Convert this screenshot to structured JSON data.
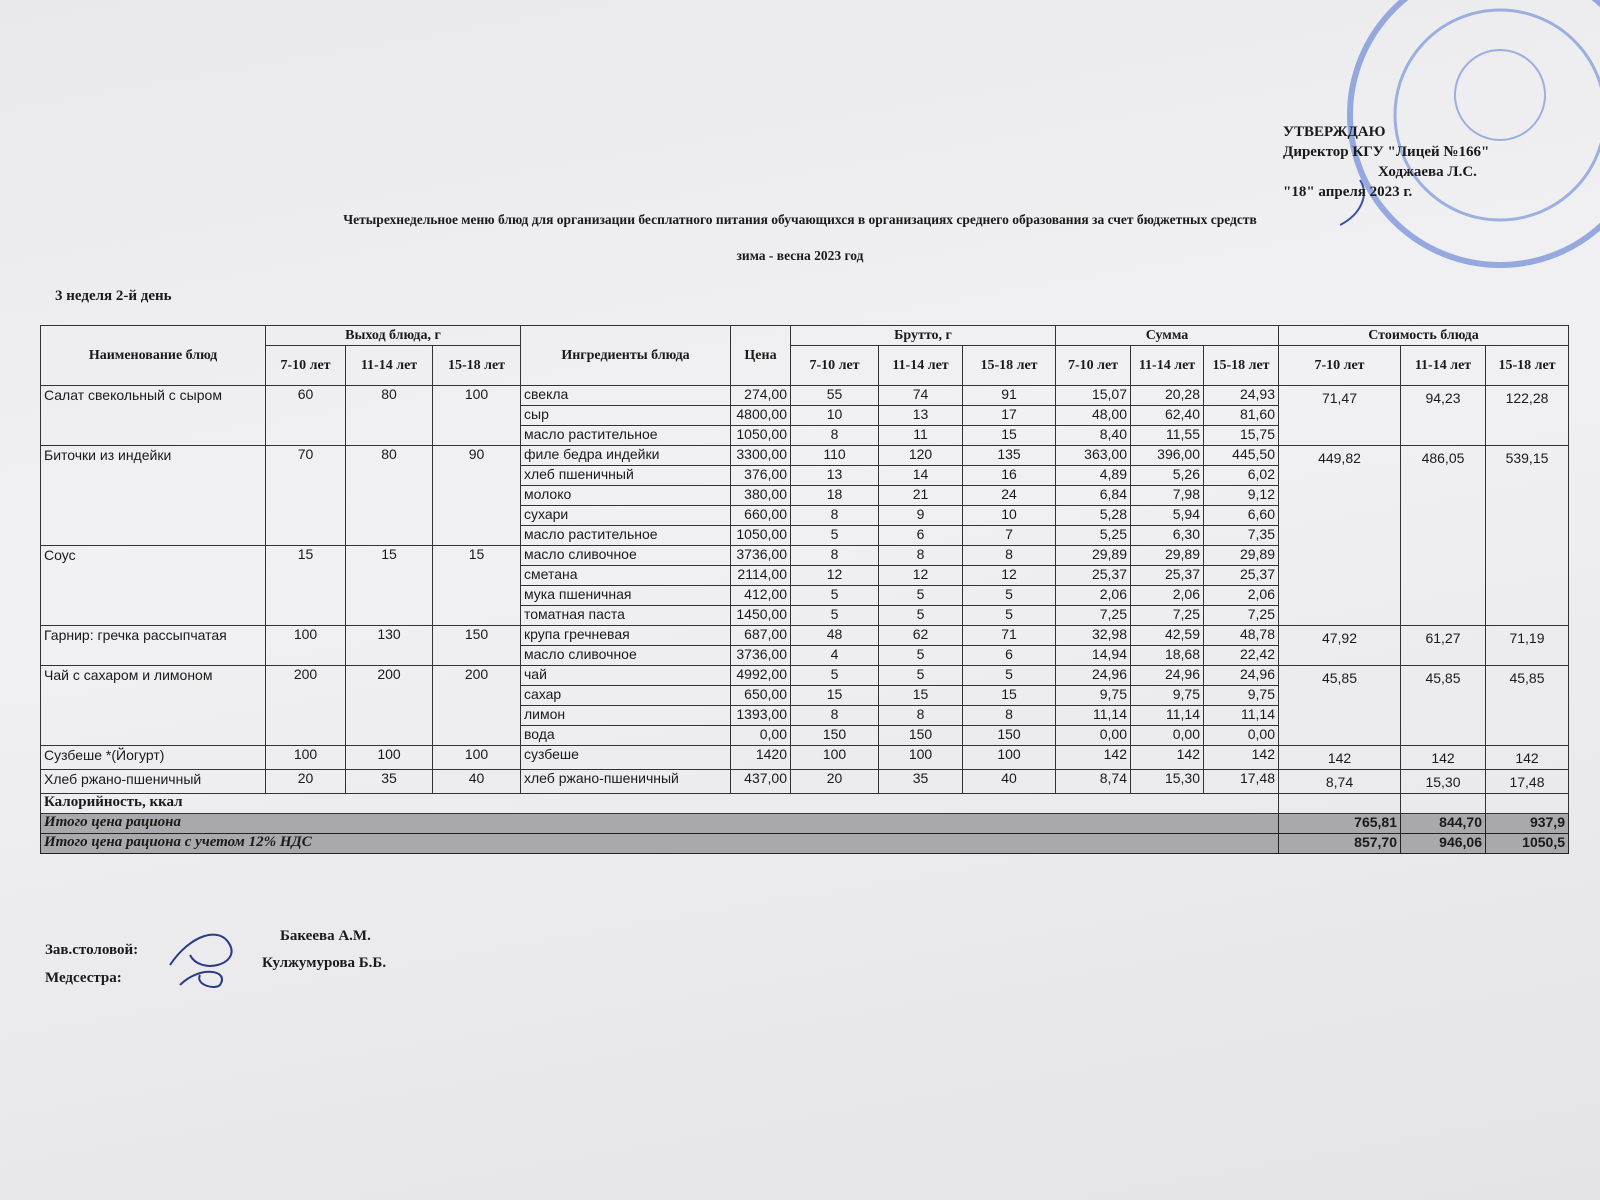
{
  "header": {
    "approve": [
      "УТВЕРЖДАЮ",
      "Директор КГУ \"Лицей №166\"",
      "Ходжаева Л.С.",
      "\"18\" апреля 2023 г."
    ],
    "title": "Четырехнедельное меню блюд для организации бесплатного питания обучающихся в организациях среднего образования за счет бюджетных средств",
    "subtitle": "зима - весна 2023 год",
    "day": "3 неделя 2-й день"
  },
  "table": {
    "columns": {
      "name": "Наименование блюд",
      "output": "Выход блюда, г",
      "ingredients": "Ингредиенты блюда",
      "price": "Цена",
      "brutto": "Брутто, г",
      "sum": "Сумма",
      "cost": "Стоимость блюда"
    },
    "ages": [
      "7-10 лет",
      "11-14 лет",
      "15-18 лет"
    ],
    "dishes": [
      {
        "name": "Салат свекольный с сыром",
        "output": [
          "60",
          "80",
          "100"
        ],
        "cost": [
          "71,47",
          "94,23",
          "122,28"
        ],
        "ingredients": [
          {
            "name": "свекла",
            "price": "274,00",
            "brutto": [
              "55",
              "74",
              "91"
            ],
            "sum": [
              "15,07",
              "20,28",
              "24,93"
            ]
          },
          {
            "name": "сыр",
            "price": "4800,00",
            "brutto": [
              "10",
              "13",
              "17"
            ],
            "sum": [
              "48,00",
              "62,40",
              "81,60"
            ]
          },
          {
            "name": "масло растительное",
            "price": "1050,00",
            "brutto": [
              "8",
              "11",
              "15"
            ],
            "sum": [
              "8,40",
              "11,55",
              "15,75"
            ]
          }
        ]
      },
      {
        "name": "Биточки из индейки",
        "output": [
          "70",
          "80",
          "90"
        ],
        "cost": [
          "449,82",
          "486,05",
          "539,15"
        ],
        "ingredients": [
          {
            "name": "филе бедра индейки",
            "price": "3300,00",
            "brutto": [
              "110",
              "120",
              "135"
            ],
            "sum": [
              "363,00",
              "396,00",
              "445,50"
            ]
          },
          {
            "name": "хлеб пшеничный",
            "price": "376,00",
            "brutto": [
              "13",
              "14",
              "16"
            ],
            "sum": [
              "4,89",
              "5,26",
              "6,02"
            ]
          },
          {
            "name": "молоко",
            "price": "380,00",
            "brutto": [
              "18",
              "21",
              "24"
            ],
            "sum": [
              "6,84",
              "7,98",
              "9,12"
            ]
          },
          {
            "name": "сухари",
            "price": "660,00",
            "brutto": [
              "8",
              "9",
              "10"
            ],
            "sum": [
              "5,28",
              "5,94",
              "6,60"
            ]
          },
          {
            "name": "масло растительное",
            "price": "1050,00",
            "brutto": [
              "5",
              "6",
              "7"
            ],
            "sum": [
              "5,25",
              "6,30",
              "7,35"
            ]
          }
        ]
      },
      {
        "name": "Соус",
        "output": [
          "15",
          "15",
          "15"
        ],
        "ingredients": [
          {
            "name": "масло сливочное",
            "price": "3736,00",
            "brutto": [
              "8",
              "8",
              "8"
            ],
            "sum": [
              "29,89",
              "29,89",
              "29,89"
            ]
          },
          {
            "name": "сметана",
            "price": "2114,00",
            "brutto": [
              "12",
              "12",
              "12"
            ],
            "sum": [
              "25,37",
              "25,37",
              "25,37"
            ]
          },
          {
            "name": "мука пшеничная",
            "price": "412,00",
            "brutto": [
              "5",
              "5",
              "5"
            ],
            "sum": [
              "2,06",
              "2,06",
              "2,06"
            ]
          },
          {
            "name": "томатная паста",
            "price": "1450,00",
            "brutto": [
              "5",
              "5",
              "5"
            ],
            "sum": [
              "7,25",
              "7,25",
              "7,25"
            ]
          }
        ]
      },
      {
        "name": "Гарнир: гречка рассыпчатая",
        "output": [
          "100",
          "130",
          "150"
        ],
        "cost": [
          "47,92",
          "61,27",
          "71,19"
        ],
        "ingredients": [
          {
            "name": "крупа гречневая",
            "price": "687,00",
            "brutto": [
              "48",
              "62",
              "71"
            ],
            "sum": [
              "32,98",
              "42,59",
              "48,78"
            ]
          },
          {
            "name": "масло сливочное",
            "price": "3736,00",
            "brutto": [
              "4",
              "5",
              "6"
            ],
            "sum": [
              "14,94",
              "18,68",
              "22,42"
            ]
          }
        ]
      },
      {
        "name": "Чай с сахаром и лимоном",
        "output": [
          "200",
          "200",
          "200"
        ],
        "cost": [
          "45,85",
          "45,85",
          "45,85"
        ],
        "ingredients": [
          {
            "name": "чай",
            "price": "4992,00",
            "brutto": [
              "5",
              "5",
              "5"
            ],
            "sum": [
              "24,96",
              "24,96",
              "24,96"
            ]
          },
          {
            "name": "сахар",
            "price": "650,00",
            "brutto": [
              "15",
              "15",
              "15"
            ],
            "sum": [
              "9,75",
              "9,75",
              "9,75"
            ]
          },
          {
            "name": "лимон",
            "price": "1393,00",
            "brutto": [
              "8",
              "8",
              "8"
            ],
            "sum": [
              "11,14",
              "11,14",
              "11,14"
            ]
          },
          {
            "name": "вода",
            "price": "0,00",
            "brutto": [
              "150",
              "150",
              "150"
            ],
            "sum": [
              "0,00",
              "0,00",
              "0,00"
            ]
          }
        ]
      },
      {
        "name": "Сузбеше *(Йогурт)",
        "output": [
          "100",
          "100",
          "100"
        ],
        "cost": [
          "142",
          "142",
          "142"
        ],
        "ingredients": [
          {
            "name": "сузбеше",
            "price": "1420",
            "brutto": [
              "100",
              "100",
              "100"
            ],
            "sum": [
              "142",
              "142",
              "142"
            ]
          }
        ]
      },
      {
        "name": "Хлеб ржано-пшеничный",
        "output": [
          "20",
          "35",
          "40"
        ],
        "cost": [
          "8,74",
          "15,30",
          "17,48"
        ],
        "ingredients": [
          {
            "name": "хлеб ржано-пшеничный",
            "price": "437,00",
            "brutto": [
              "20",
              "35",
              "40"
            ],
            "sum": [
              "8,74",
              "15,30",
              "17,48"
            ]
          }
        ]
      }
    ],
    "calories": "Калорийность, ккал",
    "totals": [
      {
        "label": "Итого цена рациона",
        "values": [
          "765,81",
          "844,70",
          "937,9"
        ]
      },
      {
        "label": "Итого цена рациона с учетом 12% НДС",
        "values": [
          "857,70",
          "946,06",
          "1050,5"
        ]
      }
    ]
  },
  "footer": {
    "signatures": [
      {
        "role": "Зав.столовой:",
        "name": "Бакеева А.М."
      },
      {
        "role": "Медсестра:",
        "name": "Кулжумурова Б.Б."
      }
    ]
  }
}
